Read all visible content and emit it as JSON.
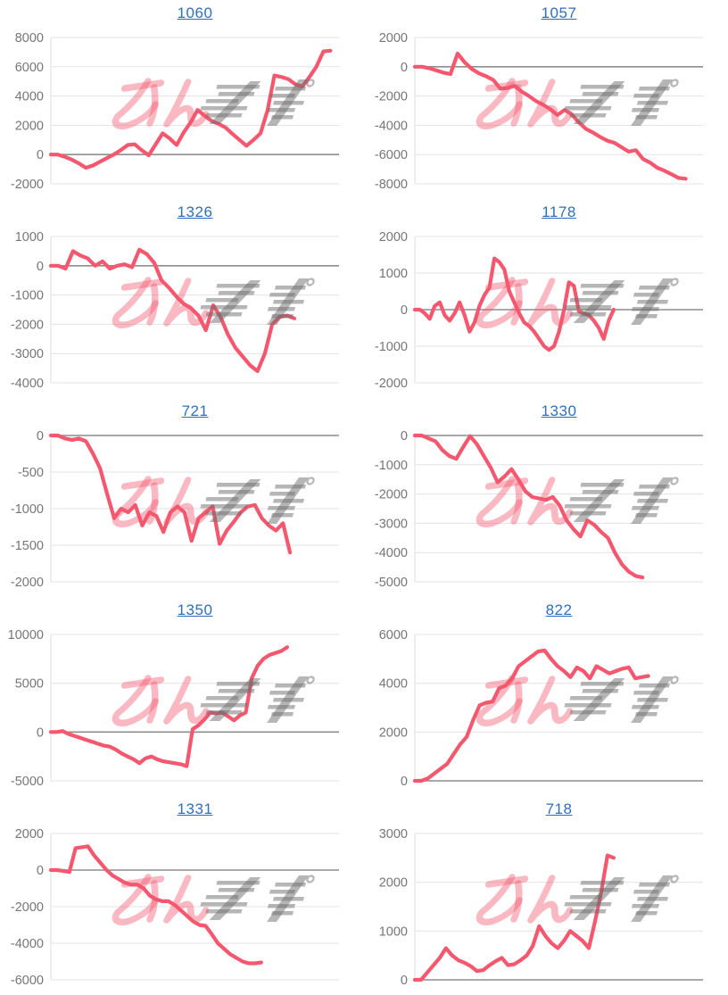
{
  "page": {
    "background": "#ffffff"
  },
  "colors": {
    "line": "#f4576e",
    "grid": "#e3e3e3",
    "zero_line": "#8e8e8e",
    "axis_line": "#dedede",
    "tick_label": "#767676",
    "title_link": "#2e6fbd",
    "watermark_pink": "rgba(244,87,110,0.42)",
    "watermark_gray": "rgba(110,110,110,0.5)"
  },
  "watermark": {
    "pink_text": "みん"
  },
  "chart_data": [
    {
      "type": "line",
      "title": "1060",
      "yticks": [
        8000,
        6000,
        4000,
        2000,
        0,
        -2000
      ],
      "x_end_fraction": 0.97,
      "values": [
        0,
        0,
        -150,
        -350,
        -600,
        -900,
        -750,
        -500,
        -250,
        0,
        300,
        650,
        700,
        300,
        -50,
        700,
        1450,
        1100,
        650,
        1500,
        2200,
        3050,
        2650,
        2300,
        2100,
        1850,
        1400,
        1000,
        600,
        1000,
        1450,
        3000,
        5400,
        5300,
        5150,
        4800,
        4650,
        5300,
        6000,
        7050,
        7100
      ]
    },
    {
      "type": "line",
      "title": "1057",
      "yticks": [
        2000,
        0,
        -2000,
        -4000,
        -6000,
        -8000
      ],
      "x_end_fraction": 0.94,
      "values": [
        0,
        0,
        -100,
        -250,
        -400,
        -500,
        900,
        300,
        -150,
        -450,
        -650,
        -900,
        -1500,
        -1450,
        -1300,
        -1700,
        -2000,
        -2350,
        -2600,
        -2900,
        -3300,
        -2950,
        -3250,
        -3800,
        -4250,
        -4500,
        -4800,
        -5050,
        -5200,
        -5500,
        -5800,
        -5700,
        -6300,
        -6550,
        -6900,
        -7100,
        -7350,
        -7600,
        -7650
      ]
    },
    {
      "type": "line",
      "title": "1326",
      "yticks": [
        1000,
        0,
        -1000,
        -2000,
        -3000,
        -4000
      ],
      "x_end_fraction": 0.845,
      "values": [
        0,
        0,
        -100,
        500,
        350,
        250,
        0,
        150,
        -100,
        0,
        50,
        -50,
        550,
        400,
        100,
        -500,
        -750,
        -1050,
        -1300,
        -1450,
        -1700,
        -2200,
        -1350,
        -1750,
        -2350,
        -2800,
        -3100,
        -3400,
        -3600,
        -3000,
        -2000,
        -1750,
        -1700,
        -1800
      ]
    },
    {
      "type": "line",
      "title": "1178",
      "yticks": [
        2000,
        1000,
        0,
        -1000,
        -2000
      ],
      "x_end_fraction": 0.69,
      "values": [
        0,
        0,
        -100,
        -250,
        100,
        200,
        -150,
        -300,
        -100,
        200,
        -150,
        -600,
        -350,
        100,
        400,
        600,
        1400,
        1300,
        1100,
        500,
        200,
        -100,
        -350,
        -450,
        -600,
        -800,
        -1000,
        -1100,
        -1000,
        -600,
        0,
        750,
        650,
        -50,
        -100,
        -150,
        -300,
        -500,
        -800,
        -300,
        0
      ]
    },
    {
      "type": "line",
      "title": "721",
      "yticks": [
        0,
        -500,
        -1000,
        -1500,
        -2000
      ],
      "x_end_fraction": 0.83,
      "values": [
        0,
        0,
        -40,
        -60,
        -40,
        -80,
        -250,
        -450,
        -800,
        -1130,
        -1000,
        -1050,
        -950,
        -1230,
        -1050,
        -1100,
        -1320,
        -1050,
        -970,
        -1050,
        -1440,
        -1130,
        -1050,
        -970,
        -1480,
        -1300,
        -1180,
        -1050,
        -970,
        -950,
        -1130,
        -1230,
        -1300,
        -1200,
        -1600
      ]
    },
    {
      "type": "line",
      "title": "1330",
      "yticks": [
        0,
        -1000,
        -2000,
        -3000,
        -4000,
        -5000
      ],
      "x_end_fraction": 0.79,
      "values": [
        0,
        0,
        -100,
        -200,
        -500,
        -700,
        -800,
        -400,
        -20,
        -300,
        -700,
        -1100,
        -1600,
        -1400,
        -1150,
        -1500,
        -1900,
        -2100,
        -2150,
        -2200,
        -2100,
        -2400,
        -2900,
        -3200,
        -3450,
        -2900,
        -3050,
        -3300,
        -3500,
        -4000,
        -4400,
        -4650,
        -4800,
        -4850
      ]
    },
    {
      "type": "line",
      "title": "1350",
      "yticks": [
        10000,
        5000,
        0,
        -5000
      ],
      "x_end_fraction": 0.82,
      "values": [
        0,
        0,
        100,
        -200,
        -400,
        -600,
        -800,
        -1000,
        -1200,
        -1400,
        -1500,
        -1800,
        -2200,
        -2500,
        -2800,
        -3200,
        -2700,
        -2500,
        -2800,
        -3000,
        -3100,
        -3200,
        -3300,
        -3500,
        300,
        700,
        1300,
        2000,
        1900,
        2000,
        1600,
        1200,
        1700,
        2000,
        5500,
        6800,
        7500,
        7900,
        8100,
        8300,
        8700
      ]
    },
    {
      "type": "line",
      "title": "822",
      "yticks": [
        6000,
        4000,
        2000,
        0
      ],
      "x_end_fraction": 0.81,
      "values": [
        0,
        0,
        100,
        300,
        500,
        700,
        1100,
        1500,
        1800,
        2500,
        3100,
        3200,
        3250,
        3800,
        3900,
        4200,
        4700,
        4900,
        5100,
        5300,
        5350,
        5000,
        4700,
        4500,
        4250,
        4650,
        4500,
        4200,
        4700,
        4550,
        4400,
        4500,
        4600,
        4650,
        4200,
        4250,
        4300
      ]
    },
    {
      "type": "line",
      "title": "1331",
      "yticks": [
        2000,
        0,
        -2000,
        -4000,
        -6000
      ],
      "x_end_fraction": 0.73,
      "values": [
        0,
        0,
        -50,
        -100,
        1200,
        1250,
        1300,
        800,
        400,
        0,
        -300,
        -500,
        -700,
        -800,
        -800,
        -1000,
        -1400,
        -1600,
        -1700,
        -1700,
        -1900,
        -2200,
        -2500,
        -2800,
        -3000,
        -3050,
        -3500,
        -4000,
        -4300,
        -4600,
        -4800,
        -5000,
        -5100,
        -5100,
        -5050
      ]
    },
    {
      "type": "line",
      "title": "718",
      "yticks": [
        3000,
        2000,
        1000,
        0
      ],
      "x_end_fraction": 0.69,
      "values": [
        0,
        0,
        150,
        300,
        450,
        650,
        500,
        400,
        350,
        280,
        180,
        200,
        300,
        380,
        450,
        300,
        320,
        400,
        500,
        700,
        1100,
        900,
        750,
        650,
        800,
        1000,
        900,
        800,
        650,
        1200,
        1800,
        2550,
        2500
      ]
    }
  ]
}
